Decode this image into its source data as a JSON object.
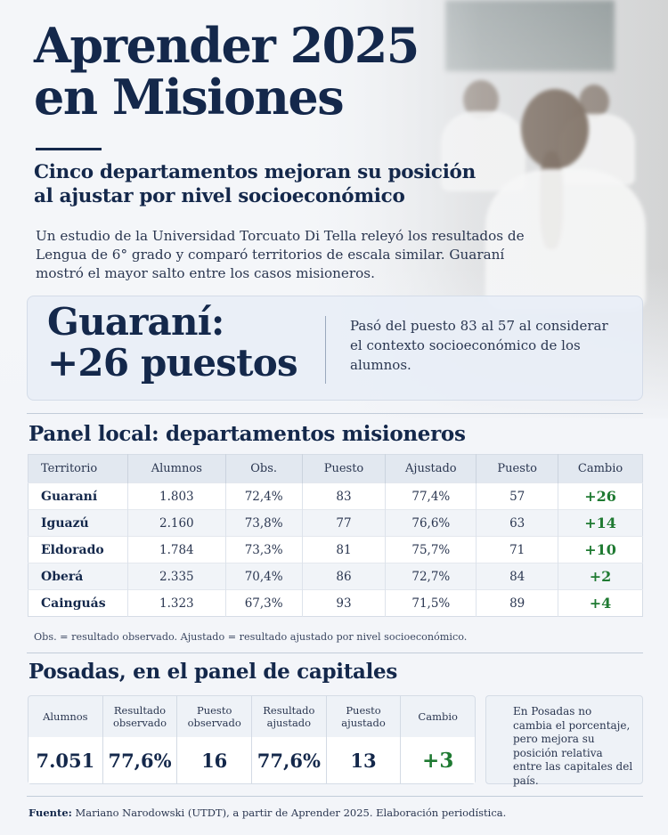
{
  "title_line1": "Aprender 2025",
  "title_line2": "en Misiones",
  "subtitle_line1": "Cinco departamentos mejoran su posición",
  "subtitle_line2": "al ajustar por nivel socioeconómico",
  "intro": "Un estudio de la Universidad Torcuato Di Tella releyó los resultados de Lengua de 6° grado y comparó territorios de escala similar. Guaraní mostró el mayor salto entre los casos misioneros.",
  "highlight": {
    "line1": "Guaraní:",
    "line2": "+26 puestos",
    "text": "Pasó del puesto 83 al 57 al considerar el contexto socioeconómico de los alumnos."
  },
  "local_panel": {
    "title": "Panel local: departamentos misioneros",
    "headers": [
      "Territorio",
      "Alumnos",
      "Obs.",
      "Puesto",
      "Ajustado",
      "Puesto",
      "Cambio"
    ],
    "rows": [
      [
        "Guaraní",
        "1.803",
        "72,4%",
        "83",
        "77,4%",
        "57",
        "+26"
      ],
      [
        "Iguazú",
        "2.160",
        "73,8%",
        "77",
        "76,6%",
        "63",
        "+14"
      ],
      [
        "Eldorado",
        "1.784",
        "73,3%",
        "81",
        "75,7%",
        "71",
        "+10"
      ],
      [
        "Oberá",
        "2.335",
        "70,4%",
        "86",
        "72,7%",
        "84",
        "+2"
      ],
      [
        "Cainguás",
        "1.323",
        "67,3%",
        "93",
        "71,5%",
        "89",
        "+4"
      ]
    ],
    "note": "Obs. = resultado observado. Ajustado = resultado ajustado por nivel socioeconómico."
  },
  "capitals_panel": {
    "title": "Posadas, en el panel de capitales",
    "headers": [
      "Alumnos",
      "Resultado observado",
      "Puesto observado",
      "Resultado ajustado",
      "Puesto ajustado",
      "Cambio"
    ],
    "values": [
      "7.051",
      "77,6%",
      "16",
      "77,6%",
      "13",
      "+3"
    ],
    "side_note": "En Posadas no cambia el porcentaje, pero mejora su posición relativa entre las capitales del país."
  },
  "source": {
    "label": "Fuente:",
    "text": "Mariano Narodowski (UTDT), a partir de Aprender 2025. Elaboración periodística."
  },
  "colors": {
    "navy": "#14284b",
    "green": "#1f7a32"
  }
}
